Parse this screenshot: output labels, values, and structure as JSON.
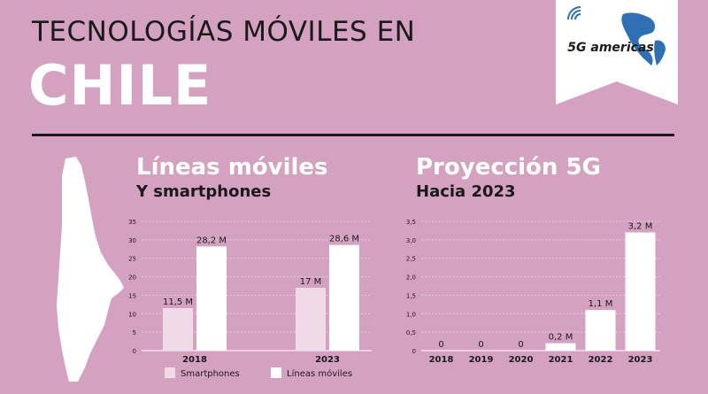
{
  "header": {
    "line1": "TECNOLOGÍAS MÓVILES EN",
    "line2": "CHILE"
  },
  "logo": {
    "text": "5G americas",
    "icon": "5g-americas-logo"
  },
  "colors": {
    "background": "#d4a2c0",
    "bar_primary": "#ffffff",
    "bar_secondary": "#f1dae8",
    "text_dark": "#1a1a1a"
  },
  "left_section": {
    "title": "Líneas móviles",
    "subtitle": "Y smartphones"
  },
  "right_section": {
    "title": "Proyección 5G",
    "subtitle": "Hacia 2023"
  },
  "chart_data": [
    {
      "type": "bar",
      "categories": [
        "2018",
        "2023"
      ],
      "series": [
        {
          "name": "Smartphones",
          "values": [
            11.5,
            17
          ],
          "labels": [
            "11,5 M",
            "17 M"
          ],
          "color": "#f1dae8"
        },
        {
          "name": "Líneas móviles",
          "values": [
            28.2,
            28.6
          ],
          "labels": [
            "28,2 M",
            "28,6 M"
          ],
          "color": "#ffffff"
        }
      ],
      "ylim": [
        0,
        35
      ],
      "yticks": [
        0,
        5,
        10,
        15,
        20,
        25,
        30,
        35
      ],
      "ytick_labels": [
        "0",
        "5",
        "10",
        "15",
        "20",
        "25",
        "30",
        "35"
      ],
      "grid": true,
      "legend": "bottom"
    },
    {
      "type": "bar",
      "categories": [
        "2018",
        "2019",
        "2020",
        "2021",
        "2022",
        "2023"
      ],
      "values": [
        0,
        0,
        0,
        0.2,
        1.1,
        3.2
      ],
      "labels": [
        "0",
        "0",
        "0",
        "0,2 M",
        "1,1 M",
        "3,2 M"
      ],
      "color": "#ffffff",
      "ylim": [
        0,
        3.5
      ],
      "yticks": [
        0,
        0.5,
        1.0,
        1.5,
        2.0,
        2.5,
        3.0,
        3.5
      ],
      "ytick_labels": [
        "0",
        "0,5",
        "1,0",
        "1,5",
        "2,0",
        "2,5",
        "3,0",
        "3,5"
      ],
      "grid": true
    }
  ]
}
